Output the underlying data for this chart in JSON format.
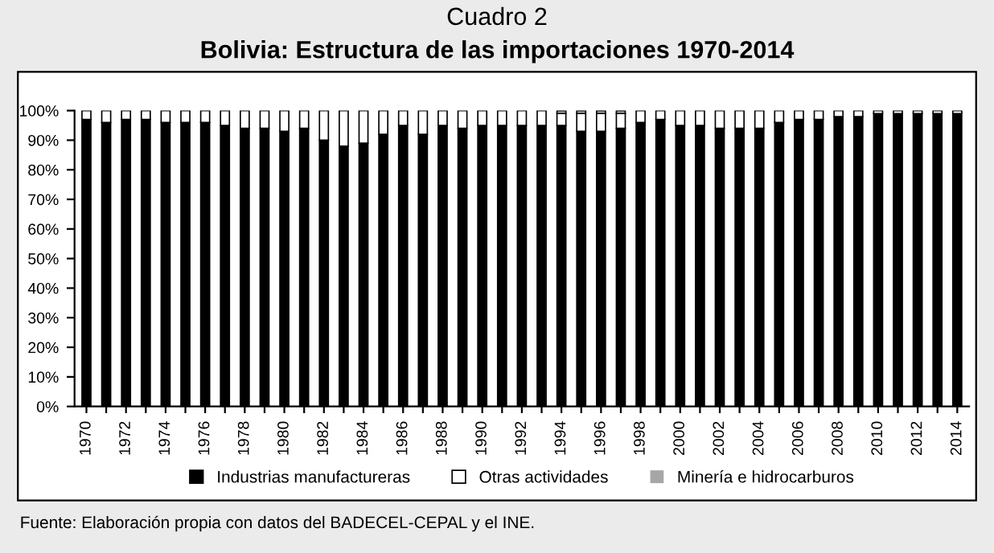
{
  "chart_data": {
    "type": "bar",
    "stacked": true,
    "title": "Cuadro 2",
    "subtitle": "Bolivia: Estructura de las importaciones 1970-2014",
    "categories": [
      "1970",
      null,
      "1972",
      null,
      "1974",
      null,
      "1976",
      null,
      "1978",
      null,
      "1980",
      null,
      "1982",
      null,
      "1984",
      null,
      "1986",
      null,
      "1988",
      null,
      "1990",
      null,
      "1992",
      null,
      "1994",
      null,
      "1996",
      null,
      "1998",
      null,
      "2000",
      null,
      "2002",
      null,
      "2004",
      null,
      "2006",
      null,
      "2008",
      null,
      "2010",
      null,
      "2012",
      null,
      "2014"
    ],
    "series": [
      {
        "name": "Industrias manufactureras",
        "color": "#000000",
        "values": [
          97,
          96,
          97,
          97,
          96,
          96,
          96,
          95,
          94,
          94,
          93,
          94,
          90,
          88,
          89,
          92,
          95,
          92,
          95,
          94,
          95,
          95,
          95,
          95,
          95,
          93,
          93,
          94,
          96,
          97,
          95,
          95,
          94,
          94,
          94,
          96,
          97,
          97,
          98,
          98,
          99,
          99,
          99,
          99,
          99
        ]
      },
      {
        "name": "Otras actividades",
        "color": "#ffffff",
        "values": [
          3,
          4,
          3,
          3,
          4,
          4,
          4,
          5,
          6,
          6,
          7,
          6,
          10,
          12,
          11,
          8,
          5,
          8,
          5,
          6,
          5,
          5,
          5,
          5,
          4,
          6,
          6,
          5,
          4,
          3,
          5,
          5,
          6,
          6,
          6,
          4,
          3,
          3,
          2,
          2,
          1,
          1,
          1,
          1,
          1
        ]
      },
      {
        "name": "Minería e hidrocarburos",
        "color": "#a6a6a6",
        "values": [
          0,
          0,
          0,
          0,
          0,
          0,
          0,
          0,
          0,
          0,
          0,
          0,
          0,
          0,
          0,
          0,
          0,
          0,
          0,
          0,
          0,
          0,
          0,
          0,
          1,
          1,
          1,
          1,
          0,
          0,
          0,
          0,
          0,
          0,
          0,
          0,
          0,
          0,
          0,
          0,
          0,
          0,
          0,
          0,
          0
        ]
      }
    ],
    "ylim": [
      0,
      100
    ],
    "yticks": [
      {
        "value": 0,
        "label": "0%"
      },
      {
        "value": 10,
        "label": "10%"
      },
      {
        "value": 20,
        "label": "20%"
      },
      {
        "value": 30,
        "label": "30%"
      },
      {
        "value": 40,
        "label": "40%"
      },
      {
        "value": 50,
        "label": "50%"
      },
      {
        "value": 60,
        "label": "60%"
      },
      {
        "value": 70,
        "label": "70%"
      },
      {
        "value": 80,
        "label": "80%"
      },
      {
        "value": 90,
        "label": "90%"
      },
      {
        "value": 100,
        "label": "100%"
      }
    ],
    "grid": false,
    "legend": "bottom",
    "annotations": [
      "Fuente: Elaboración propia con datos del BADECEL-CEPAL y el INE."
    ]
  }
}
